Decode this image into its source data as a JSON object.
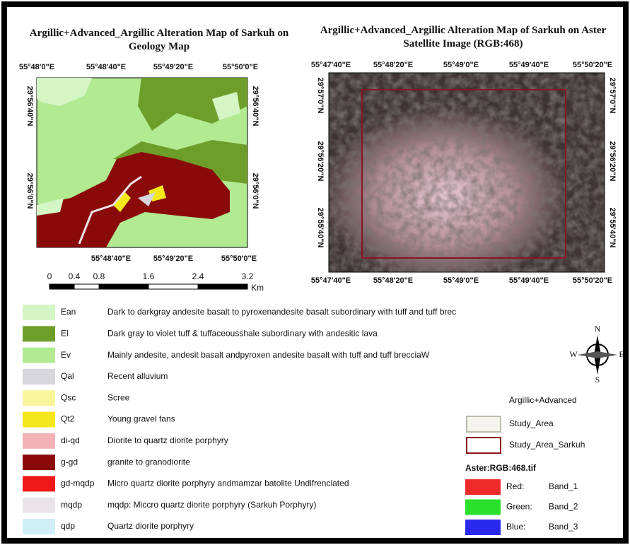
{
  "left_map": {
    "title": "Argillic+Advanced_Argillic Alteration Map of Sarkuh on Geology Map",
    "top_labels": [
      "55°48'0\"E",
      "55°48'40\"E",
      "55°49'20\"E",
      "55°50'0\"E"
    ],
    "bottom_labels": [
      "55°48'40\"E",
      "55°49'20\"E",
      "55°50'0\"E"
    ],
    "left_labels": [
      "29°56'40\"N",
      "29°56'0\"N"
    ],
    "right_labels": [
      "29°56'40\"N",
      "29°56'0\"N"
    ]
  },
  "right_map": {
    "title": "Argillic+Advanced_Argillic Alteration Map of Sarkuh on Aster Satellite Image (RGB:468)",
    "top_labels": [
      "55°47'40\"E",
      "55°48'20\"E",
      "55°49'0\"E",
      "55°49'40\"E",
      "55°50'20\"E"
    ],
    "bottom_labels": [
      "55°47'40\"E",
      "55°48'20\"E",
      "55°49'0\"E",
      "55°49'40\"E",
      "55°50'20\"E"
    ],
    "left_labels": [
      "29°57'0\"N",
      "29°56'20\"N",
      "29°55'40\"N"
    ],
    "right_labels": [
      "29°57'0\"N",
      "29°56'20\"N",
      "29°55'40\"N"
    ]
  },
  "scale_bar": {
    "ticks": [
      0,
      0.4,
      0.8,
      1.6,
      2.4,
      3.2
    ],
    "unit": "Km"
  },
  "geology_legend": [
    {
      "code": "Ean",
      "description": "Dark to darkgray andesite basalt to pyroxenandesite basalt subordinary with tuff and tuff brec",
      "color": "#d4f5c4"
    },
    {
      "code": "El",
      "description": "Dark gray to violet tuff & tuffaceousshale subordinary with andesitic lava",
      "color": "#6e9e2a"
    },
    {
      "code": "Ev",
      "description": "Mainly andesite, andesit basalt andpyroxen andesite basalt with tuff and tuff brecciaW",
      "color": "#b2ea92"
    },
    {
      "code": "Qal",
      "description": "Recent alluvium",
      "color": "#d6d6dc"
    },
    {
      "code": "Qsc",
      "description": "Scree",
      "color": "#f8f49a"
    },
    {
      "code": "Qt2",
      "description": "Young gravel fans",
      "color": "#f4e81a"
    },
    {
      "code": "di-qd",
      "description": "Diorite to quartz diorite porphyry",
      "color": "#f2b2b6"
    },
    {
      "code": "g-gd",
      "description": "granite to granodiorite",
      "color": "#8a0a0a"
    },
    {
      "code": "gd-mqdp",
      "description": "Micro quartz diorite porphyry andmamzar batolite Undifrenciated",
      "color": "#f01818"
    },
    {
      "code": "mqdp",
      "description": "mqdp: Miccro quartz diorite porphyry (Sarkuh Porphyry)",
      "color": "#eae4ea"
    },
    {
      "code": "qdp",
      "description": "Quartz diorite porphyry",
      "color": "#cfeef6"
    }
  ],
  "layer_legend": {
    "group": "Argillic+Advanced",
    "layers": [
      {
        "name": "Study_Area",
        "color": "#f4f4ec",
        "outline": "#bbbbaa"
      },
      {
        "name": "Study_Area_Sarkuh",
        "color": "#ffffff",
        "outline": "#8a1420"
      }
    ],
    "raster": "Aster:RGB:468.tif",
    "bands": [
      {
        "channel": "Red:",
        "band": "Band_1",
        "color": "#ee2a2a"
      },
      {
        "channel": "Green:",
        "band": "Band_2",
        "color": "#2ae02a"
      },
      {
        "channel": "Blue:",
        "band": "Band_3",
        "color": "#2a2aee"
      }
    ]
  },
  "north_arrow": {
    "north": "N",
    "south": "S",
    "west": "W",
    "east": "E"
  }
}
